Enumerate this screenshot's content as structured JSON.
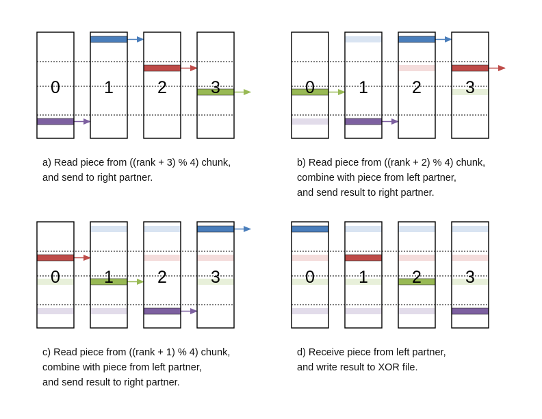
{
  "colors": {
    "blue": "#4a7ebb",
    "red": "#be4b48",
    "green": "#98b954",
    "purple": "#7d60a0",
    "blue_faded": "#d9e4f2",
    "red_faded": "#f4dcdb",
    "green_faded": "#e8f0da",
    "purple_faded": "#e2dcea",
    "outline": "#000000"
  },
  "panels": [
    {
      "id": "a",
      "caption": [
        "a) Read piece from ((rank + 3) % 4) chunk,",
        "and send to right partner."
      ],
      "ranks": [
        {
          "label": "0",
          "pieces": [
            {
              "row": 3,
              "color": "purple",
              "state": "active",
              "send": true
            }
          ]
        },
        {
          "label": "1",
          "pieces": [
            {
              "row": 0,
              "color": "blue",
              "state": "active",
              "send": true
            }
          ]
        },
        {
          "label": "2",
          "pieces": [
            {
              "row": 1,
              "color": "red",
              "state": "active",
              "send": true
            }
          ]
        },
        {
          "label": "3",
          "pieces": [
            {
              "row": 2,
              "color": "green",
              "state": "active",
              "send": true
            }
          ]
        }
      ]
    },
    {
      "id": "b",
      "caption": [
        "b) Read piece from ((rank + 2) % 4) chunk,",
        "combine with piece from left partner,",
        "and send result to right partner."
      ],
      "ranks": [
        {
          "label": "0",
          "pieces": [
            {
              "row": 2,
              "color": "green",
              "state": "active",
              "send": true
            },
            {
              "row": 3,
              "color": "purple",
              "state": "faded",
              "send": false
            }
          ]
        },
        {
          "label": "1",
          "pieces": [
            {
              "row": 0,
              "color": "blue",
              "state": "faded",
              "send": false
            },
            {
              "row": 3,
              "color": "purple",
              "state": "active",
              "send": true
            }
          ]
        },
        {
          "label": "2",
          "pieces": [
            {
              "row": 0,
              "color": "blue",
              "state": "active",
              "send": true
            },
            {
              "row": 1,
              "color": "red",
              "state": "faded",
              "send": false
            }
          ]
        },
        {
          "label": "3",
          "pieces": [
            {
              "row": 1,
              "color": "red",
              "state": "active",
              "send": true
            },
            {
              "row": 2,
              "color": "green",
              "state": "faded",
              "send": false
            }
          ]
        }
      ]
    },
    {
      "id": "c",
      "caption": [
        "c) Read piece from ((rank + 1) % 4) chunk,",
        "combine with piece from left partner,",
        "and send result to right partner."
      ],
      "ranks": [
        {
          "label": "0",
          "pieces": [
            {
              "row": 1,
              "color": "red",
              "state": "active",
              "send": true
            },
            {
              "row": 2,
              "color": "green",
              "state": "faded",
              "send": false
            },
            {
              "row": 3,
              "color": "purple",
              "state": "faded",
              "send": false
            }
          ]
        },
        {
          "label": "1",
          "pieces": [
            {
              "row": 0,
              "color": "blue",
              "state": "faded",
              "send": false
            },
            {
              "row": 2,
              "color": "green",
              "state": "active",
              "send": true
            },
            {
              "row": 3,
              "color": "purple",
              "state": "faded",
              "send": false
            }
          ]
        },
        {
          "label": "2",
          "pieces": [
            {
              "row": 0,
              "color": "blue",
              "state": "faded",
              "send": false
            },
            {
              "row": 1,
              "color": "red",
              "state": "faded",
              "send": false
            },
            {
              "row": 3,
              "color": "purple",
              "state": "active",
              "send": true
            }
          ]
        },
        {
          "label": "3",
          "pieces": [
            {
              "row": 0,
              "color": "blue",
              "state": "active",
              "send": true
            },
            {
              "row": 1,
              "color": "red",
              "state": "faded",
              "send": false
            },
            {
              "row": 2,
              "color": "green",
              "state": "faded",
              "send": false
            }
          ]
        }
      ]
    },
    {
      "id": "d",
      "caption": [
        "d) Receive piece from left partner,",
        "and write result to XOR file."
      ],
      "ranks": [
        {
          "label": "0",
          "pieces": [
            {
              "row": 0,
              "color": "blue",
              "state": "active",
              "send": false
            },
            {
              "row": 1,
              "color": "red",
              "state": "faded",
              "send": false
            },
            {
              "row": 2,
              "color": "green",
              "state": "faded",
              "send": false
            },
            {
              "row": 3,
              "color": "purple",
              "state": "faded",
              "send": false
            }
          ]
        },
        {
          "label": "1",
          "pieces": [
            {
              "row": 0,
              "color": "blue",
              "state": "faded",
              "send": false
            },
            {
              "row": 1,
              "color": "red",
              "state": "active",
              "send": false
            },
            {
              "row": 2,
              "color": "green",
              "state": "faded",
              "send": false
            },
            {
              "row": 3,
              "color": "purple",
              "state": "faded",
              "send": false
            }
          ]
        },
        {
          "label": "2",
          "pieces": [
            {
              "row": 0,
              "color": "blue",
              "state": "faded",
              "send": false
            },
            {
              "row": 1,
              "color": "red",
              "state": "faded",
              "send": false
            },
            {
              "row": 2,
              "color": "green",
              "state": "active",
              "send": false
            },
            {
              "row": 3,
              "color": "purple",
              "state": "faded",
              "send": false
            }
          ]
        },
        {
          "label": "3",
          "pieces": [
            {
              "row": 0,
              "color": "blue",
              "state": "faded",
              "send": false
            },
            {
              "row": 1,
              "color": "red",
              "state": "faded",
              "send": false
            },
            {
              "row": 2,
              "color": "green",
              "state": "faded",
              "send": false
            },
            {
              "row": 3,
              "color": "purple",
              "state": "active",
              "send": false
            }
          ]
        }
      ]
    }
  ]
}
